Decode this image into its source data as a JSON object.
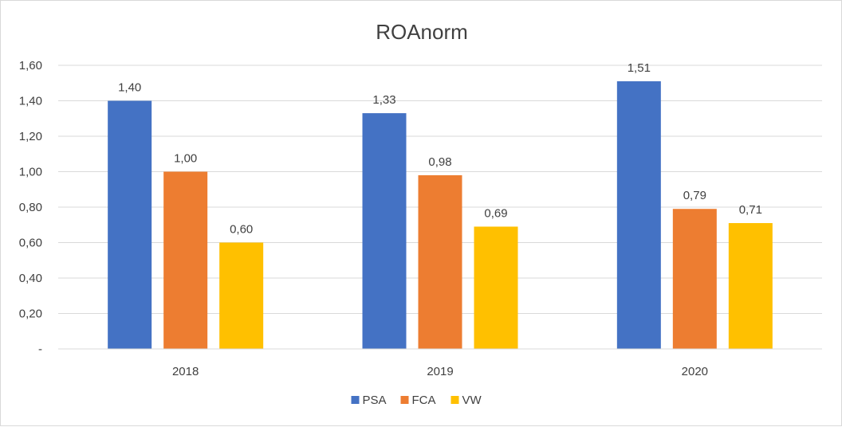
{
  "chart_data": {
    "type": "bar",
    "title": "ROAnorm",
    "categories": [
      "2018",
      "2019",
      "2020"
    ],
    "series": [
      {
        "name": "PSA",
        "color": "#4472C4",
        "values": [
          1.4,
          1.33,
          1.51
        ],
        "labels": [
          "1,40",
          "1,33",
          "1,51"
        ]
      },
      {
        "name": "FCA",
        "color": "#ED7D31",
        "values": [
          1.0,
          0.98,
          0.79
        ],
        "labels": [
          "1,00",
          "0,98",
          "0,79"
        ]
      },
      {
        "name": "VW",
        "color": "#FFC000",
        "values": [
          0.6,
          0.69,
          0.71
        ],
        "labels": [
          "0,60",
          "0,69",
          "0,71"
        ]
      }
    ],
    "ylim": [
      0,
      1.6
    ],
    "yticks": [
      0,
      0.2,
      0.4,
      0.6,
      0.8,
      1.0,
      1.2,
      1.4,
      1.6
    ],
    "ytick_labels": [
      "-",
      "0,20",
      "0,40",
      "0,60",
      "0,80",
      "1,00",
      "1,20",
      "1,40",
      "1,60"
    ],
    "grid": true,
    "legend_position": "bottom",
    "xlabel": "",
    "ylabel": ""
  }
}
